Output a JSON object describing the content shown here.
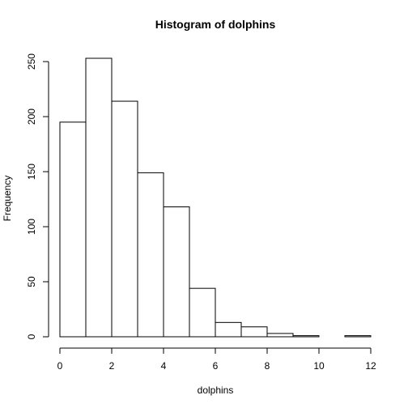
{
  "chart_data": {
    "type": "bar",
    "title": "Histogram of dolphins",
    "xlabel": "dolphins",
    "ylabel": "Frequency",
    "bins": [
      {
        "start": 0,
        "end": 1,
        "count": 195
      },
      {
        "start": 1,
        "end": 2,
        "count": 253
      },
      {
        "start": 2,
        "end": 3,
        "count": 214
      },
      {
        "start": 3,
        "end": 4,
        "count": 149
      },
      {
        "start": 4,
        "end": 5,
        "count": 118
      },
      {
        "start": 5,
        "end": 6,
        "count": 44
      },
      {
        "start": 6,
        "end": 7,
        "count": 13
      },
      {
        "start": 7,
        "end": 8,
        "count": 9
      },
      {
        "start": 8,
        "end": 9,
        "count": 3
      },
      {
        "start": 9,
        "end": 10,
        "count": 1
      },
      {
        "start": 10,
        "end": 11,
        "count": 0
      },
      {
        "start": 11,
        "end": 12,
        "count": 1
      }
    ],
    "xlim": [
      0,
      12
    ],
    "ylim": [
      0,
      253
    ],
    "x_ticks": [
      "0",
      "2",
      "4",
      "6",
      "8",
      "10",
      "12"
    ],
    "y_ticks": [
      "0",
      "50",
      "100",
      "150",
      "200",
      "250"
    ],
    "grid": false,
    "legend": "none"
  }
}
